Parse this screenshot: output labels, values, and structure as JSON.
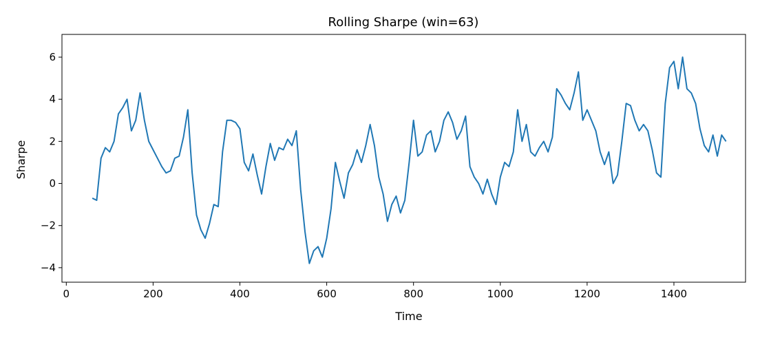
{
  "chart_data": {
    "type": "line",
    "title": "Rolling Sharpe (win=63)",
    "xlabel": "Time",
    "ylabel": "Sharpe",
    "x": [
      60,
      70,
      80,
      90,
      100,
      110,
      120,
      130,
      140,
      150,
      160,
      170,
      180,
      190,
      200,
      210,
      220,
      230,
      240,
      250,
      260,
      270,
      280,
      290,
      300,
      310,
      320,
      330,
      340,
      350,
      360,
      370,
      380,
      390,
      400,
      410,
      420,
      430,
      440,
      450,
      460,
      470,
      480,
      490,
      500,
      510,
      520,
      530,
      540,
      550,
      560,
      570,
      580,
      590,
      600,
      610,
      620,
      630,
      640,
      650,
      660,
      670,
      680,
      690,
      700,
      710,
      720,
      730,
      740,
      750,
      760,
      770,
      780,
      790,
      800,
      810,
      820,
      830,
      840,
      850,
      860,
      870,
      880,
      890,
      900,
      910,
      920,
      930,
      940,
      950,
      960,
      970,
      980,
      990,
      1000,
      1010,
      1020,
      1030,
      1040,
      1050,
      1060,
      1070,
      1080,
      1090,
      1100,
      1110,
      1120,
      1130,
      1140,
      1150,
      1160,
      1170,
      1180,
      1190,
      1200,
      1210,
      1220,
      1230,
      1240,
      1250,
      1260,
      1270,
      1280,
      1290,
      1300,
      1310,
      1320,
      1330,
      1340,
      1350,
      1360,
      1370,
      1380,
      1390,
      1400,
      1410,
      1420,
      1430,
      1440,
      1450,
      1460,
      1470,
      1480,
      1490,
      1500,
      1510,
      1520
    ],
    "series": [
      {
        "name": "Rolling Sharpe",
        "color": "#1f77b4",
        "values": [
          -0.7,
          -0.8,
          1.2,
          1.7,
          1.5,
          2.0,
          3.3,
          3.6,
          4.0,
          2.5,
          3.0,
          4.3,
          3.0,
          2.0,
          1.6,
          1.2,
          0.8,
          0.5,
          0.6,
          1.2,
          1.3,
          2.2,
          3.5,
          0.5,
          -1.5,
          -2.2,
          -2.6,
          -1.9,
          -1.0,
          -1.1,
          1.5,
          3.0,
          3.0,
          2.9,
          2.6,
          1.0,
          0.6,
          1.4,
          0.4,
          -0.5,
          0.8,
          1.9,
          1.1,
          1.7,
          1.6,
          2.1,
          1.8,
          2.5,
          -0.3,
          -2.3,
          -3.8,
          -3.2,
          -3.0,
          -3.5,
          -2.6,
          -1.2,
          1.0,
          0.1,
          -0.7,
          0.5,
          0.9,
          1.6,
          1.0,
          1.8,
          2.8,
          1.8,
          0.3,
          -0.5,
          -1.8,
          -1.0,
          -0.6,
          -1.4,
          -0.8,
          1.0,
          3.0,
          1.3,
          1.5,
          2.3,
          2.5,
          1.5,
          2.0,
          3.0,
          3.4,
          2.9,
          2.1,
          2.5,
          3.2,
          0.8,
          0.3,
          0.0,
          -0.5,
          0.2,
          -0.5,
          -1.0,
          0.3,
          1.0,
          0.8,
          1.5,
          3.5,
          2.0,
          2.8,
          1.5,
          1.3,
          1.7,
          2.0,
          1.5,
          2.2,
          4.5,
          4.2,
          3.8,
          3.5,
          4.3,
          5.3,
          3.0,
          3.5,
          3.0,
          2.5,
          1.5,
          0.9,
          1.5,
          0.0,
          0.4,
          2.0,
          3.8,
          3.7,
          3.0,
          2.5,
          2.8,
          2.5,
          1.6,
          0.5,
          0.3,
          3.8,
          5.5,
          5.8,
          4.5,
          6.0,
          4.5,
          4.3,
          3.8,
          2.6,
          1.8,
          1.5,
          2.3,
          1.3,
          2.3,
          2.0
        ]
      }
    ],
    "xlim": [
      -10,
      1565
    ],
    "ylim": [
      -4.69,
      7.08
    ],
    "xticks": [
      0,
      200,
      400,
      600,
      800,
      1000,
      1200,
      1400
    ],
    "yticks": [
      {
        "value": -4,
        "label": "−4"
      },
      {
        "value": -2,
        "label": "−2"
      },
      0,
      2,
      4,
      6
    ]
  }
}
